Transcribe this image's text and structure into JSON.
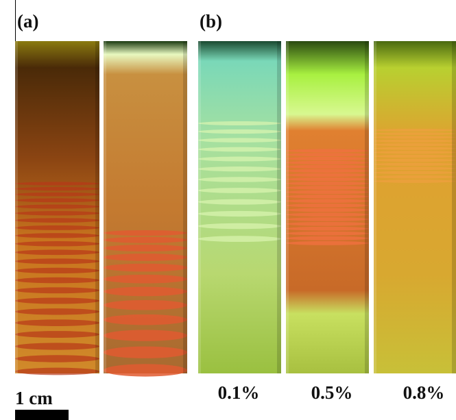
{
  "panels": [
    {
      "label": "(a)"
    },
    {
      "label": "(b)",
      "tubes": [
        {
          "label": "0.1%"
        },
        {
          "label": "0.5%"
        },
        {
          "label": "0.8%"
        }
      ]
    }
  ],
  "scale_bar": {
    "label": "1 cm"
  }
}
